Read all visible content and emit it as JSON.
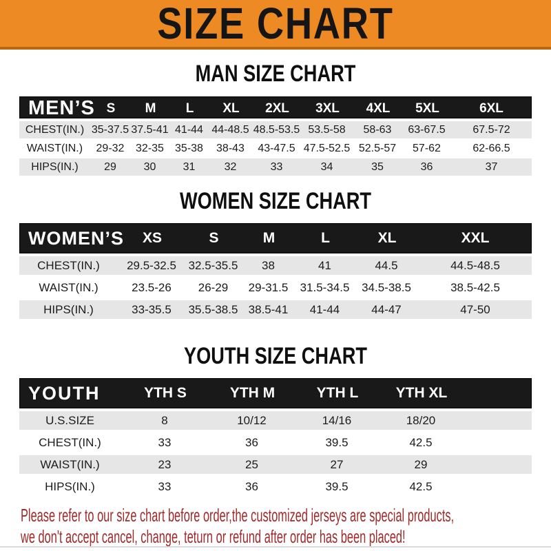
{
  "colors": {
    "accent": "#ee8a23",
    "accent-dark": "#b4690f",
    "band": "#191919",
    "row-shade": "#e6e6e6",
    "footer-red": "#9f2a2a"
  },
  "banner": {
    "title": "SIZE CHART"
  },
  "sections": [
    {
      "id": "man",
      "heading": "MAN SIZE CHART",
      "header_label": "MEN’S",
      "columns": [
        "S",
        "M",
        "L",
        "XL",
        "2XL",
        "3XL",
        "4XL",
        "5XL",
        "6XL"
      ],
      "rows": [
        {
          "label": "CHEST(IN.)",
          "values": [
            "35-37.5",
            "37.5-41",
            "41-44",
            "44-48.5",
            "48.5-53.5",
            "53.5-58",
            "58-63",
            "63-67.5",
            "67.5-72"
          ]
        },
        {
          "label": "WAIST(IN.)",
          "values": [
            "29-32",
            "32-35",
            "35-38",
            "38-43",
            "43-47.5",
            "47.5-52.5",
            "52.5-57",
            "57-62",
            "62-66.5"
          ]
        },
        {
          "label": "HIPS(IN.)",
          "values": [
            "29",
            "30",
            "31",
            "32",
            "33",
            "34",
            "35",
            "36",
            "37"
          ]
        }
      ]
    },
    {
      "id": "women",
      "heading": "WOMEN SIZE CHART",
      "header_label": "WOMEN’S",
      "columns": [
        "XS",
        "S",
        "M",
        "L",
        "XL",
        "XXL"
      ],
      "rows": [
        {
          "label": "CHEST(IN.)",
          "values": [
            "29.5-32.5",
            "32.5-35.5",
            "38",
            "41",
            "44.5",
            "44.5-48.5"
          ]
        },
        {
          "label": "WAIST(IN.)",
          "values": [
            "23.5-26",
            "26-29",
            "29-31.5",
            "31.5-34.5",
            "34.5-38.5",
            "38.5-42.5"
          ]
        },
        {
          "label": "HIPS(IN.)",
          "values": [
            "33-35.5",
            "35.5-38.5",
            "38.5-41",
            "41-44",
            "44-47",
            "47-50"
          ]
        }
      ]
    },
    {
      "id": "youth",
      "heading": "YOUTH SIZE CHART",
      "header_label": "YOUTH",
      "columns": [
        "YTH S",
        "YTH M",
        "YTH L",
        "YTH XL"
      ],
      "rows": [
        {
          "label": "U.S.SIZE",
          "values": [
            "8",
            "10/12",
            "14/16",
            "18/20"
          ]
        },
        {
          "label": "CHEST(IN.)",
          "values": [
            "33",
            "36",
            "39.5",
            "42.5"
          ]
        },
        {
          "label": "WAIST(IN.)",
          "values": [
            "23",
            "25",
            "27",
            "29"
          ]
        },
        {
          "label": "HIPS(IN.)",
          "values": [
            "33",
            "36",
            "39.5",
            "42.5"
          ]
        }
      ]
    }
  ],
  "footer": {
    "line1": "Please refer to our size chart before order,the customized jerseys are special products,",
    "line2": "we don't accept cancel, change, teturn or refund after order has been placed!"
  }
}
